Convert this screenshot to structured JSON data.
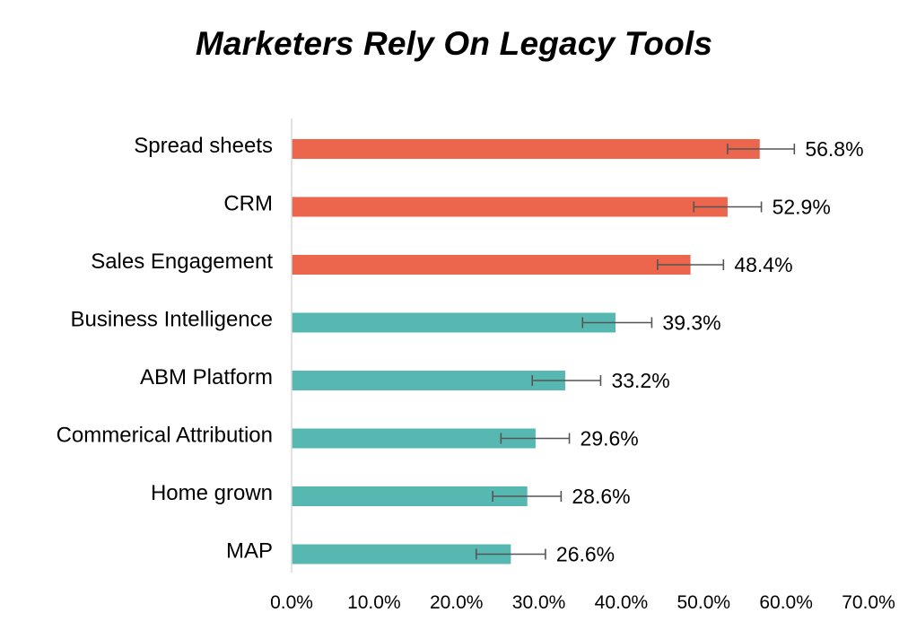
{
  "chart_data": {
    "type": "bar",
    "orientation": "horizontal",
    "title": "Marketers Rely On Legacy Tools",
    "categories": [
      "Spread sheets",
      "CRM",
      "Sales Engagement",
      "Business Intelligence",
      "ABM Platform",
      "Commerical Attribution",
      "Home grown",
      "MAP"
    ],
    "values": [
      56.8,
      52.9,
      48.4,
      39.3,
      33.2,
      29.6,
      28.6,
      26.6
    ],
    "value_labels": [
      "56.8%",
      "52.9%",
      "48.4%",
      "39.3%",
      "33.2%",
      "29.6%",
      "28.6%",
      "26.6%"
    ],
    "error_bars": [
      [
        52.9,
        61.0
      ],
      [
        48.8,
        57.0
      ],
      [
        44.4,
        52.4
      ],
      [
        35.3,
        43.7
      ],
      [
        29.2,
        37.5
      ],
      [
        25.4,
        33.7
      ],
      [
        24.4,
        32.7
      ],
      [
        22.4,
        30.8
      ]
    ],
    "highlighted_count": 3,
    "colors": {
      "highlight": "#EC654D",
      "normal": "#57B8B1",
      "error_bar": "#555555",
      "axis": "#D9D9D9"
    },
    "xlim": [
      0,
      70
    ],
    "x_ticks": [
      0,
      10,
      20,
      30,
      40,
      50,
      60,
      70
    ],
    "x_tick_labels": [
      "0.0%",
      "10.0%",
      "20.0%",
      "30.0%",
      "40.0%",
      "50.0%",
      "60.0%",
      "70.0%"
    ],
    "xlabel": "",
    "ylabel": "",
    "grid": false,
    "legend": "none"
  }
}
